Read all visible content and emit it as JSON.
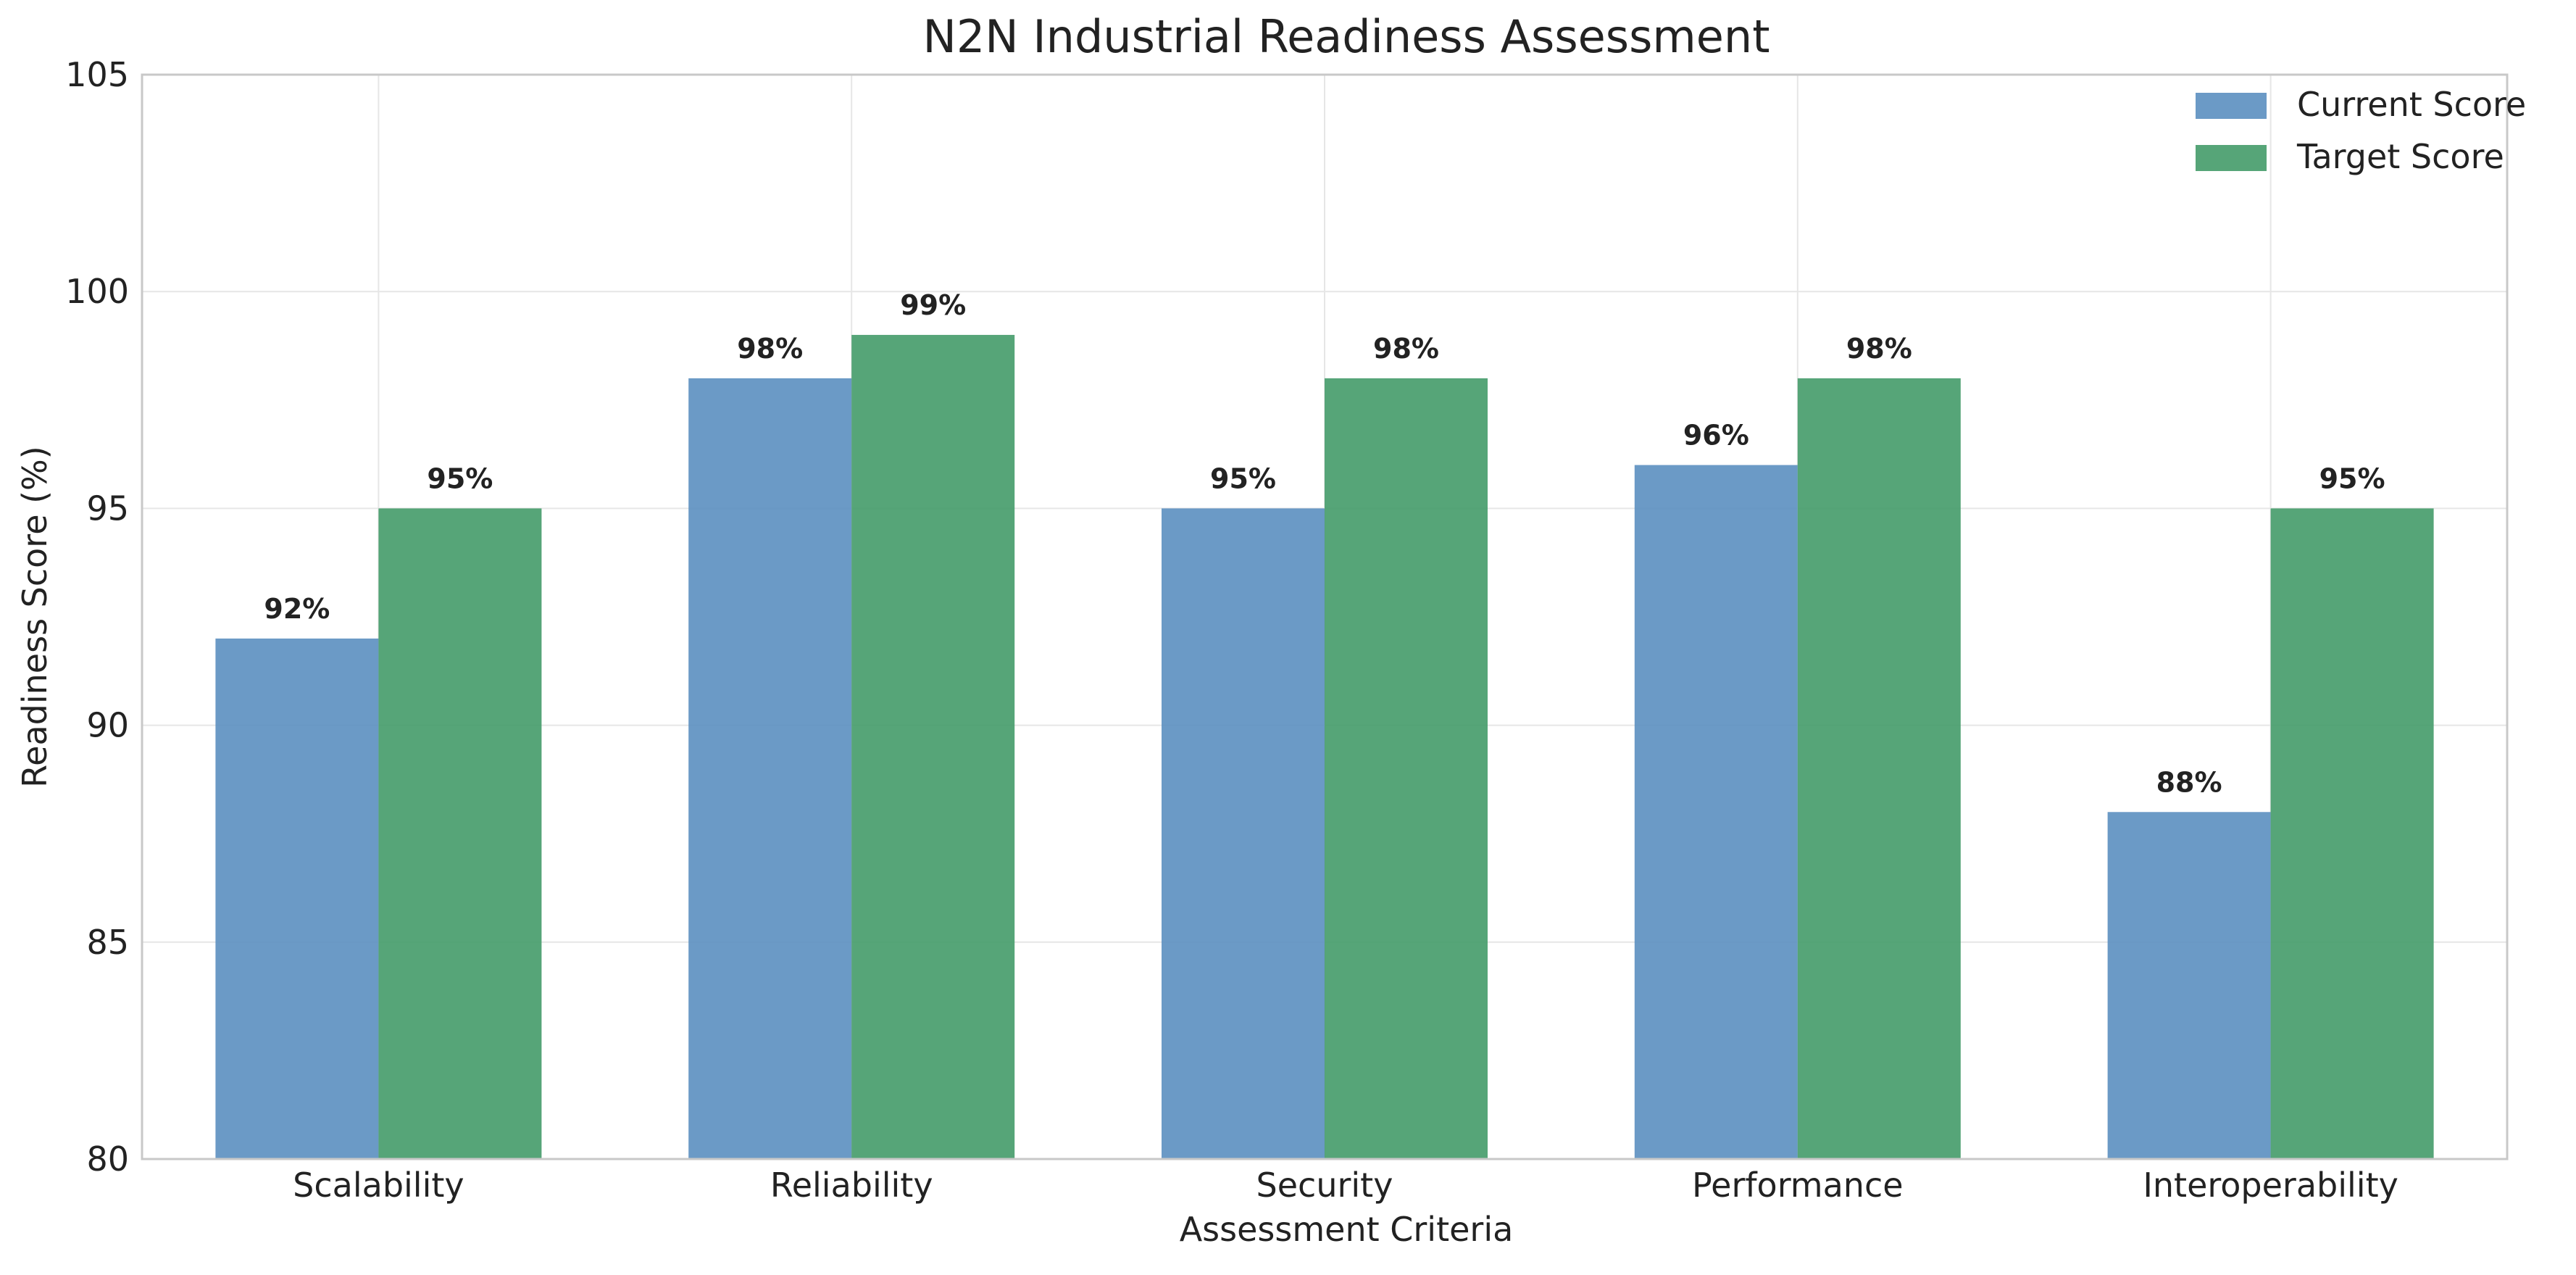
{
  "chart_data": {
    "type": "bar",
    "title": "N2N Industrial Readiness Assessment",
    "xlabel": "Assessment Criteria",
    "ylabel": "Readiness Score (%)",
    "ylim": [
      80,
      105
    ],
    "yticks": [
      80,
      85,
      90,
      95,
      100,
      105
    ],
    "grid": true,
    "legend_position": "top-right",
    "categories": [
      "Scalability",
      "Reliability",
      "Security",
      "Performance",
      "Interoperability"
    ],
    "series": [
      {
        "name": "Current Score",
        "color": "#5b8fc0",
        "values": [
          92,
          98,
          95,
          96,
          88
        ],
        "labels": [
          "92%",
          "98%",
          "95%",
          "96%",
          "88%"
        ]
      },
      {
        "name": "Target Score",
        "color": "#449b69",
        "values": [
          95,
          99,
          98,
          98,
          95
        ],
        "labels": [
          "95%",
          "99%",
          "98%",
          "98%",
          "95%"
        ]
      }
    ]
  }
}
